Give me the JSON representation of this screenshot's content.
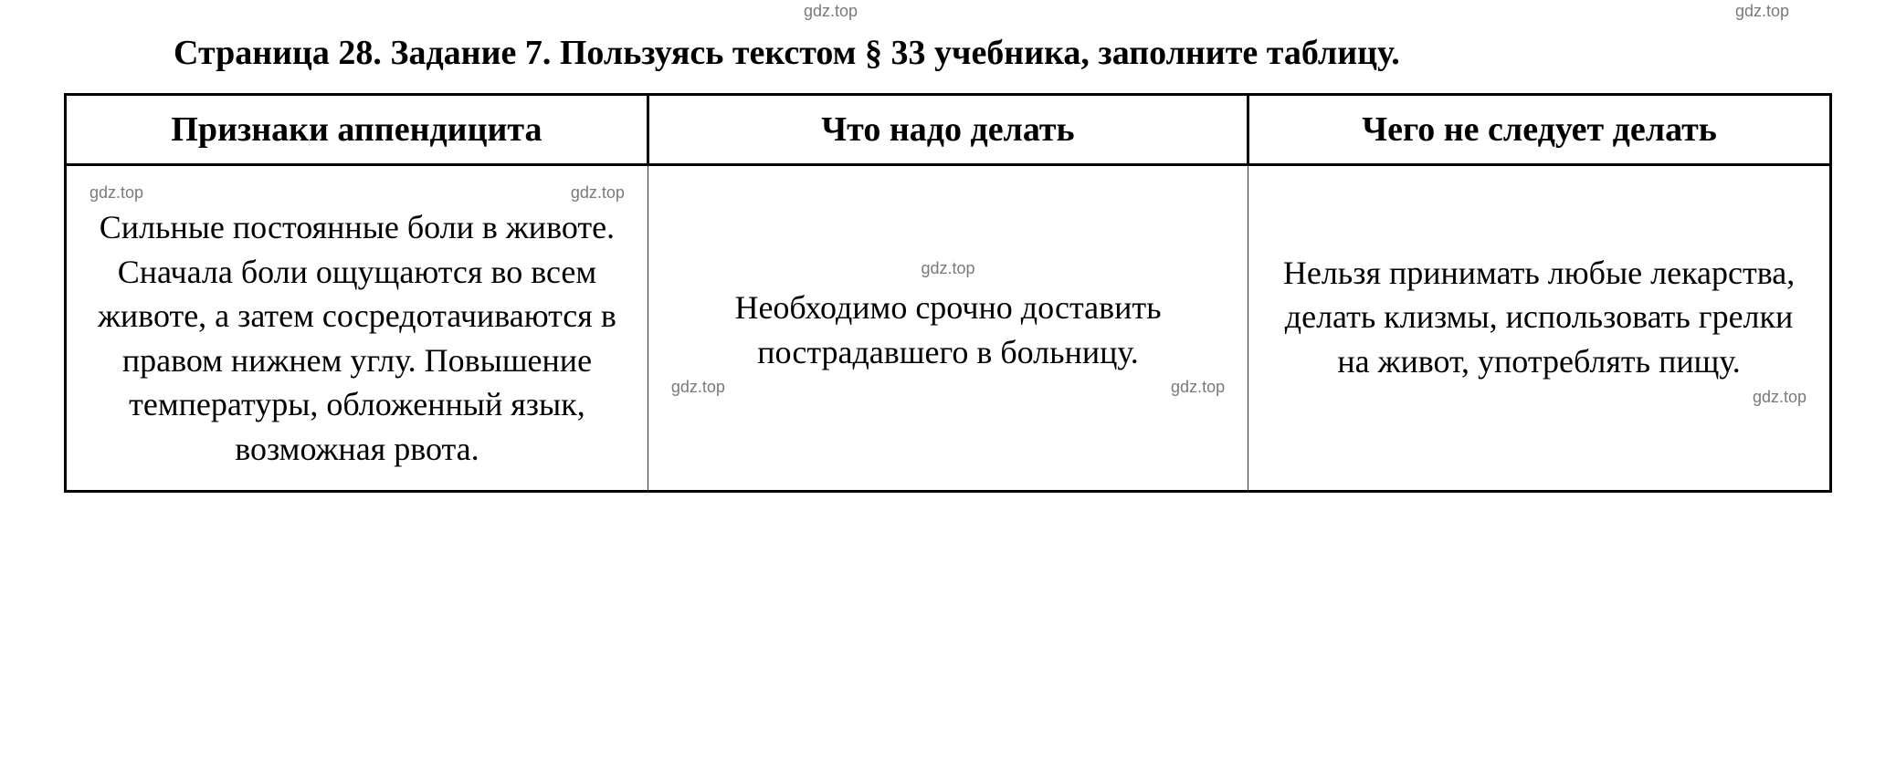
{
  "title": {
    "line": "Страница 28. Задание 7. Пользуясь текстом § 33 учебника, заполните таблицу.",
    "font_size": 38,
    "font_weight": "bold",
    "color": "#000000"
  },
  "watermarks": {
    "text": "gdz.top",
    "font_size": 18,
    "color": "#7a7a7a"
  },
  "table": {
    "border_color": "#000000",
    "header_border_width": 3,
    "cell_border_width": 1,
    "background_color": "#ffffff",
    "columns": [
      {
        "label": "Признаки аппендицита",
        "width_pct": 33
      },
      {
        "label": "Что надо делать",
        "width_pct": 34
      },
      {
        "label": "Чего не следует делать",
        "width_pct": 33
      }
    ],
    "header_style": {
      "font_size": 38,
      "font_weight": "bold",
      "text_align": "center"
    },
    "cell_style": {
      "font_size": 36,
      "font_weight": "normal",
      "text_align": "center",
      "line_height": 1.35
    },
    "rows": [
      {
        "col1": "Сильные постоянные боли в животе. Сначала боли ощущаются во всем животе, а затем сосредотачиваются в правом нижнем углу. Повышение температуры, обложенный язык, возможная рвота.",
        "col2": "Необходимо срочно доставить пострадавшего в больницу.",
        "col3": "Нельзя принимать любые лекарства, делать клизмы, использовать грелки на живот, употреблять пищу."
      }
    ]
  }
}
